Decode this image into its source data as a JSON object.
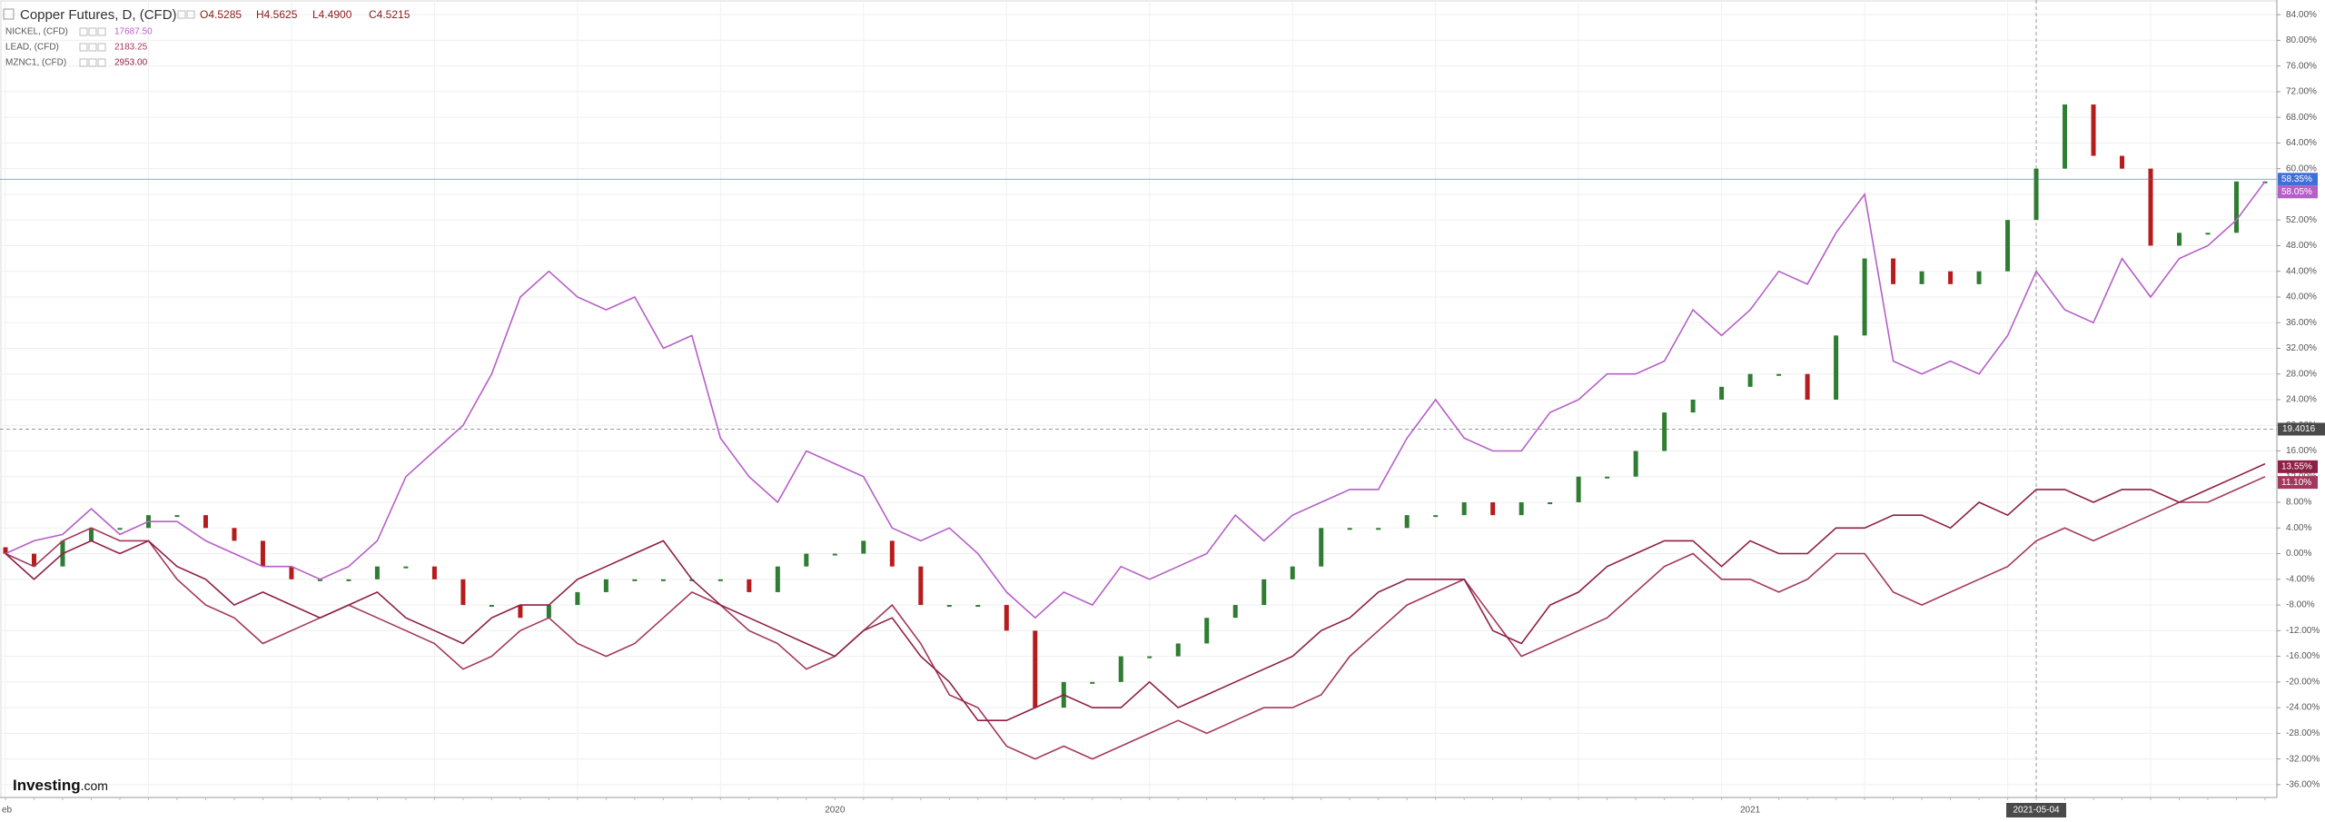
{
  "chart_data": {
    "type": "candlestick_compare",
    "header_values": [
      "O4.5285",
      "H4.5625",
      "L4.4900",
      "C4.5215"
    ],
    "logo": [
      "Investing",
      ".com"
    ],
    "categories": [
      "eb",
      null,
      null,
      null,
      null,
      null,
      null,
      null,
      null,
      null,
      null,
      null,
      null,
      null,
      null,
      null,
      null,
      null,
      null,
      null,
      null,
      null,
      null,
      null,
      null,
      null,
      null,
      null,
      null,
      "2020",
      null,
      null,
      null,
      null,
      null,
      null,
      null,
      null,
      null,
      null,
      null,
      null,
      null,
      null,
      null,
      null,
      null,
      null,
      null,
      null,
      null,
      null,
      null,
      null,
      null,
      null,
      null,
      null,
      null,
      null,
      null,
      "2021",
      null,
      null,
      null,
      null,
      null,
      null,
      null,
      null,
      null,
      "2021-05-04",
      null,
      null,
      null,
      null,
      null,
      null,
      null,
      null
    ],
    "series": [
      {
        "name": "Copper Futures, D, (CFD)",
        "kind": "candle",
        "up_color": "#2e7d32",
        "down_color": "#b71c1c",
        "label_color": "#3f6fd8",
        "open": [
          1,
          0,
          -2,
          2,
          4,
          4,
          6,
          6,
          4,
          2,
          -2,
          -4,
          -4,
          -4,
          -2,
          -2,
          -4,
          -8,
          -8,
          -10,
          -8,
          -6,
          -4,
          -4,
          -4,
          -4,
          -4,
          -6,
          -2,
          0,
          0,
          2,
          -2,
          -8,
          -8,
          -8,
          -12,
          -24,
          -20,
          -20,
          -16,
          -16,
          -14,
          -10,
          -8,
          -4,
          -2,
          4,
          4,
          4,
          6,
          6,
          8,
          6,
          8,
          8,
          12,
          12,
          16,
          22,
          24,
          26,
          28,
          28,
          24,
          34,
          46,
          42,
          44,
          42,
          44,
          52,
          60,
          70,
          62,
          60,
          48,
          50,
          50,
          58
        ],
        "values": [
          0,
          -2,
          2,
          4,
          4,
          6,
          6,
          4,
          2,
          -2,
          -4,
          -4,
          -4,
          -2,
          -2,
          -4,
          -8,
          -8,
          -10,
          -8,
          -6,
          -4,
          -4,
          -4,
          -4,
          -4,
          -6,
          -2,
          0,
          0,
          2,
          -2,
          -8,
          -8,
          -8,
          -12,
          -24,
          -20,
          -20,
          -16,
          -16,
          -14,
          -10,
          -8,
          -4,
          -2,
          4,
          4,
          4,
          6,
          6,
          8,
          6,
          8,
          8,
          12,
          12,
          16,
          22,
          24,
          26,
          28,
          28,
          24,
          34,
          46,
          42,
          44,
          42,
          44,
          52,
          60,
          70,
          62,
          60,
          48,
          50,
          50,
          58,
          58
        ],
        "last": {
          "value": 58.35,
          "label": "58.35%"
        }
      },
      {
        "name": "NICKEL, (CFD)",
        "kind": "line",
        "color": "#b65fc7",
        "legend_value": "17687.50",
        "values": [
          0,
          2,
          3,
          7,
          3,
          5,
          5,
          2,
          0,
          -2,
          -2,
          -4,
          -2,
          2,
          12,
          16,
          20,
          28,
          40,
          44,
          40,
          38,
          40,
          32,
          34,
          18,
          12,
          8,
          16,
          14,
          12,
          4,
          2,
          4,
          0,
          -6,
          -10,
          -6,
          -8,
          -2,
          -4,
          -2,
          0,
          6,
          2,
          6,
          8,
          10,
          10,
          18,
          24,
          18,
          16,
          16,
          22,
          24,
          28,
          28,
          30,
          38,
          34,
          38,
          44,
          42,
          50,
          56,
          30,
          28,
          30,
          28,
          34,
          44,
          38,
          36,
          46,
          40,
          46,
          48,
          52,
          58
        ],
        "last": {
          "value": 58.05,
          "label": "58.05%"
        }
      },
      {
        "name": "LEAD, (CFD)",
        "kind": "line",
        "color": "#a3385c",
        "legend_value": "2183.25",
        "values": [
          0,
          -2,
          2,
          4,
          2,
          2,
          -4,
          -8,
          -10,
          -14,
          -12,
          -10,
          -8,
          -10,
          -12,
          -14,
          -18,
          -16,
          -12,
          -10,
          -14,
          -16,
          -14,
          -10,
          -6,
          -8,
          -12,
          -14,
          -18,
          -16,
          -12,
          -8,
          -14,
          -22,
          -24,
          -30,
          -32,
          -30,
          -32,
          -30,
          -28,
          -26,
          -28,
          -26,
          -24,
          -24,
          -22,
          -16,
          -12,
          -8,
          -6,
          -4,
          -10,
          -16,
          -14,
          -12,
          -10,
          -6,
          -2,
          0,
          -4,
          -4,
          -6,
          -4,
          0,
          0,
          -6,
          -8,
          -6,
          -4,
          -2,
          2,
          4,
          2,
          4,
          6,
          8,
          8,
          10,
          12
        ],
        "last": {
          "value": 11.1,
          "label": "11.10%"
        }
      },
      {
        "name": "MZNC1, (CFD)",
        "kind": "line",
        "color": "#8e1f45",
        "legend_value": "2953.00",
        "values": [
          0,
          -4,
          0,
          2,
          0,
          2,
          -2,
          -4,
          -8,
          -6,
          -8,
          -10,
          -8,
          -6,
          -10,
          -12,
          -14,
          -10,
          -8,
          -8,
          -4,
          -2,
          0,
          2,
          -4,
          -8,
          -10,
          -12,
          -14,
          -16,
          -12,
          -10,
          -16,
          -20,
          -26,
          -26,
          -24,
          -22,
          -24,
          -24,
          -20,
          -24,
          -22,
          -20,
          -18,
          -16,
          -12,
          -10,
          -6,
          -4,
          -4,
          -4,
          -12,
          -14,
          -8,
          -6,
          -2,
          0,
          2,
          2,
          -2,
          2,
          0,
          0,
          4,
          4,
          6,
          6,
          4,
          8,
          6,
          10,
          10,
          8,
          10,
          10,
          8,
          10,
          12,
          14
        ],
        "last": {
          "value": 13.55,
          "label": "13.55%"
        }
      }
    ],
    "crosshair": {
      "value": 19.4016,
      "category": 71
    },
    "ylim": [
      -38,
      86
    ],
    "yticks": [
      {
        "value": 84,
        "label": "84.00%"
      },
      {
        "value": 80,
        "label": "80.00%"
      },
      {
        "value": 76,
        "label": "76.00%"
      },
      {
        "value": 72,
        "label": "72.00%"
      },
      {
        "value": 68,
        "label": "68.00%"
      },
      {
        "value": 64,
        "label": "64.00%"
      },
      {
        "value": 60,
        "label": "60.00%"
      },
      {
        "value": 56,
        "label": "56.00%"
      },
      {
        "value": 52,
        "label": "52.00%"
      },
      {
        "value": 48,
        "label": "48.00%"
      },
      {
        "value": 44,
        "label": "44.00%"
      },
      {
        "value": 40,
        "label": "40.00%"
      },
      {
        "value": 36,
        "label": "36.00%"
      },
      {
        "value": 32,
        "label": "32.00%"
      },
      {
        "value": 28,
        "label": "28.00%"
      },
      {
        "value": 24,
        "label": "24.00%"
      },
      {
        "value": 20,
        "label": "20.00%"
      },
      {
        "value": 16,
        "label": "16.00%"
      },
      {
        "value": 12,
        "label": "12.00%"
      },
      {
        "value": 8,
        "label": "8.00%"
      },
      {
        "value": 4,
        "label": "4.00%"
      },
      {
        "value": 0,
        "label": "0.00%"
      },
      {
        "value": -4,
        "label": "-4.00%"
      },
      {
        "value": -8,
        "label": "-8.00%"
      },
      {
        "value": -12,
        "label": "-12.00%"
      },
      {
        "value": -16,
        "label": "-16.00%"
      },
      {
        "value": -20,
        "label": "-20.00%"
      },
      {
        "value": -24,
        "label": "-24.00%"
      },
      {
        "value": -28,
        "label": "-28.00%"
      },
      {
        "value": -32,
        "label": "-32.00%"
      },
      {
        "value": -36,
        "label": "-36.00%"
      }
    ],
    "grid": true
  }
}
